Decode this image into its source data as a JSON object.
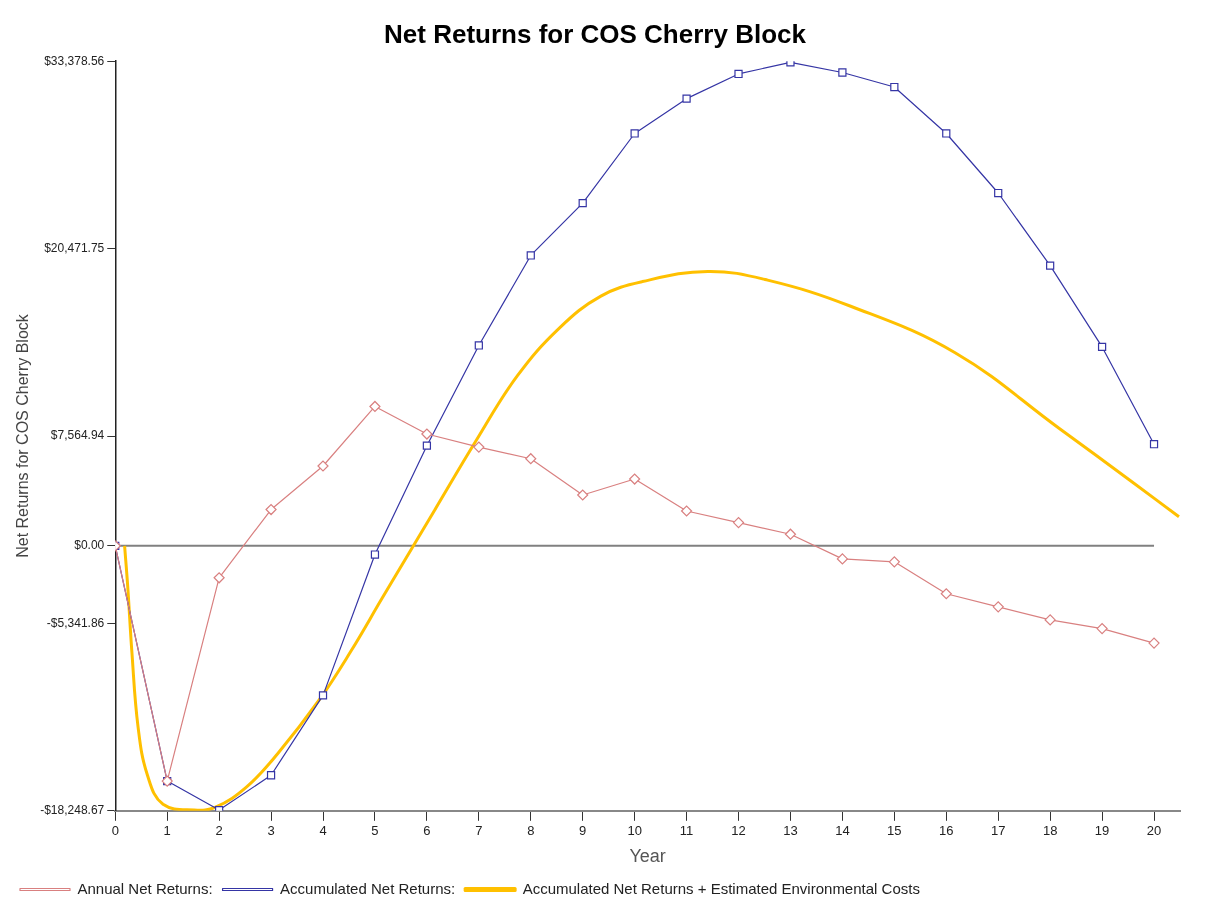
{
  "chart_data": {
    "type": "line",
    "title": "Net Returns for COS Cherry Block",
    "xlabel": "Year",
    "ylabel": "Net Returns for COS Cherry Block",
    "x": [
      0,
      1,
      2,
      3,
      4,
      5,
      6,
      7,
      8,
      9,
      10,
      11,
      12,
      13,
      14,
      15,
      16,
      17,
      18,
      19,
      20
    ],
    "xlim": [
      0,
      20.5
    ],
    "xticks": [
      0,
      1,
      2,
      3,
      4,
      5,
      6,
      7,
      8,
      9,
      10,
      11,
      12,
      13,
      14,
      15,
      16,
      17,
      18,
      19,
      20
    ],
    "ylim": [
      -18248.67,
      33378.56
    ],
    "yticks": [
      {
        "value": -18248.67,
        "label": "-$18,248.67"
      },
      {
        "value": -5341.86,
        "label": "-$5,341.86"
      },
      {
        "value": 0,
        "label": "$0.00"
      },
      {
        "value": 7564.94,
        "label": "$7,564.94"
      },
      {
        "value": 20471.75,
        "label": "$20,471.75"
      },
      {
        "value": 33378.56,
        "label": "$33,378.56"
      }
    ],
    "grid": false,
    "legend": "bottom",
    "ref_lines": [
      {
        "axis": "y",
        "value": 0,
        "color": "#808080"
      }
    ],
    "series": [
      {
        "name": "Annual Net Returns:",
        "color": "#d98080",
        "marker": "diamond",
        "values": [
          0,
          -16200,
          -2200,
          2500,
          5500,
          9600,
          7700,
          6800,
          6000,
          3500,
          4600,
          2400,
          1600,
          800,
          -900,
          -1100,
          -3300,
          -4200,
          -5100,
          -5700,
          -6700
        ]
      },
      {
        "name": "Accumulated Net Returns:",
        "color": "#3535a5",
        "marker": "square",
        "values": [
          0,
          -16200,
          -18200,
          -15800,
          -10300,
          -600,
          6900,
          13800,
          20000,
          23600,
          28400,
          30800,
          32500,
          33300,
          32600,
          31600,
          28400,
          24300,
          19300,
          13700,
          7000
        ]
      },
      {
        "name": "Accumulated Net Returns + Estimated Environmental Costs",
        "color": "#ffc000",
        "marker": "none",
        "x": [
          0.18,
          0.24,
          0.32,
          0.44,
          0.62,
          0.92,
          1.52,
          1.93,
          2.53,
          3.13,
          3.93,
          4.53,
          5.14,
          5.64,
          6.14,
          6.94,
          7.74,
          8.55,
          9.35,
          10.15,
          11.41,
          12.56,
          14.16,
          16.17,
          18.17,
          19.58,
          20.48
        ],
        "values": [
          0,
          -2800,
          -7300,
          -12500,
          -15800,
          -17800,
          -18200,
          -18000,
          -16600,
          -14300,
          -10600,
          -7300,
          -3600,
          -600,
          2400,
          7200,
          11700,
          15000,
          17200,
          18200,
          18900,
          18300,
          16500,
          13300,
          8100,
          4400,
          2000
        ]
      }
    ]
  }
}
